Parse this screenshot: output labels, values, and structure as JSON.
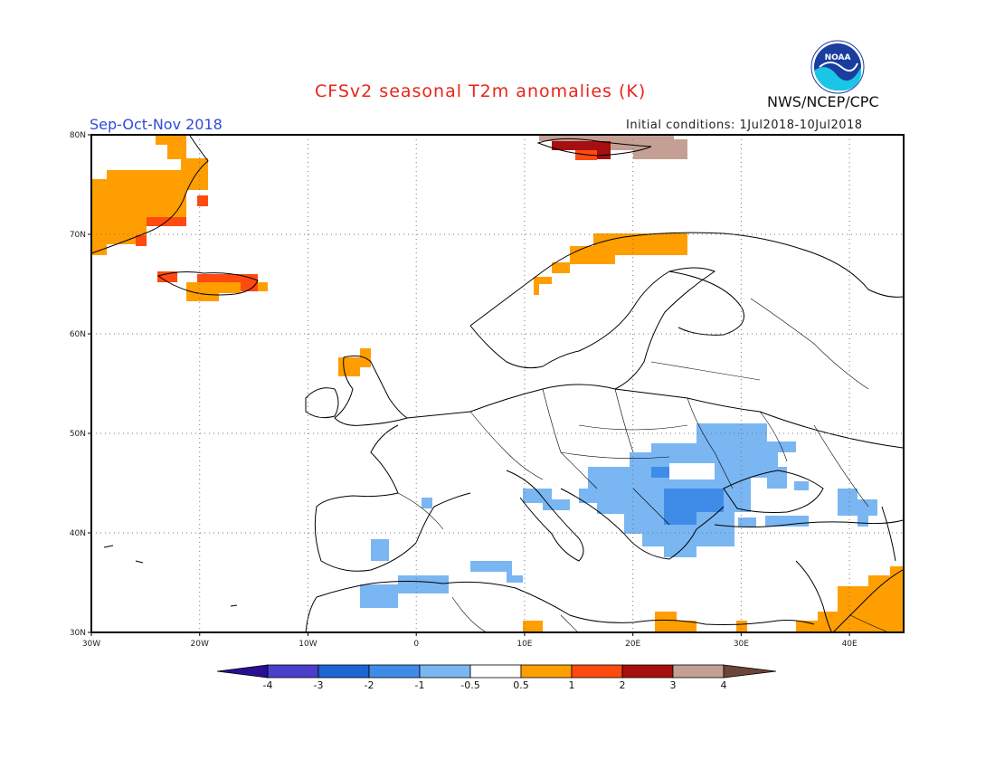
{
  "header": {
    "title": "CFSv2 seasonal T2m anomalies (K)",
    "season": "Sep-Oct-Nov 2018",
    "initial_conditions": "Initial conditions: 1Jul2018-10Jul2018",
    "agency": "NWS/NCEP/CPC",
    "logo_text": "NOAA"
  },
  "map": {
    "lon_range": [
      -30,
      45
    ],
    "lat_range": [
      30,
      80
    ],
    "lon_labels": [
      "30W",
      "20W",
      "10W",
      "0",
      "10E",
      "20E",
      "30E",
      "40E"
    ],
    "lat_labels": [
      "30N",
      "40N",
      "50N",
      "60N",
      "70N",
      "80N"
    ],
    "grid_style": "dotted"
  },
  "colorbar": {
    "labels": [
      "-4",
      "-3",
      "-2",
      "-1",
      "-0.5",
      "0.5",
      "1",
      "2",
      "3",
      "4"
    ],
    "colors": [
      "#2a0f94",
      "#4a3fcc",
      "#1d66d2",
      "#3f8ce8",
      "#7ab6f2",
      "#ffffff",
      "#ff9e00",
      "#ff4a10",
      "#a50f0f",
      "#c4a094",
      "#6b4538"
    ]
  },
  "colors": {
    "warm_1": "#ff9e00",
    "warm_2": "#ff4a10",
    "warm_3": "#a50f0f",
    "warm_4": "#c4a094",
    "cool_1": "#7ab6f2",
    "cool_2": "#3f8ce8"
  }
}
